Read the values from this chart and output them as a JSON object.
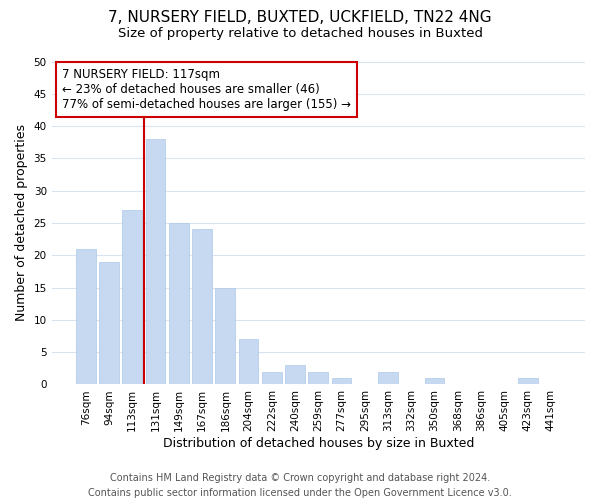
{
  "title": "7, NURSERY FIELD, BUXTED, UCKFIELD, TN22 4NG",
  "subtitle": "Size of property relative to detached houses in Buxted",
  "xlabel": "Distribution of detached houses by size in Buxted",
  "ylabel": "Number of detached properties",
  "categories": [
    "76sqm",
    "94sqm",
    "113sqm",
    "131sqm",
    "149sqm",
    "167sqm",
    "186sqm",
    "204sqm",
    "222sqm",
    "240sqm",
    "259sqm",
    "277sqm",
    "295sqm",
    "313sqm",
    "332sqm",
    "350sqm",
    "368sqm",
    "386sqm",
    "405sqm",
    "423sqm",
    "441sqm"
  ],
  "values": [
    21,
    19,
    27,
    38,
    25,
    24,
    15,
    7,
    2,
    3,
    2,
    1,
    0,
    2,
    0,
    1,
    0,
    0,
    0,
    1,
    0
  ],
  "bar_color": "#c6d9f1",
  "bar_edge_color": "#adc8e8",
  "marker_label": "7 NURSERY FIELD: 117sqm",
  "annotation1": "← 23% of detached houses are smaller (46)",
  "annotation2": "77% of semi-detached houses are larger (155) →",
  "ylim": [
    0,
    50
  ],
  "yticks": [
    0,
    5,
    10,
    15,
    20,
    25,
    30,
    35,
    40,
    45,
    50
  ],
  "vline_color": "#cc0000",
  "vline_x_index": 2.5,
  "box_facecolor": "white",
  "box_edgecolor": "#cc0000",
  "footer1": "Contains HM Land Registry data © Crown copyright and database right 2024.",
  "footer2": "Contains public sector information licensed under the Open Government Licence v3.0.",
  "title_fontsize": 11,
  "subtitle_fontsize": 9.5,
  "xlabel_fontsize": 9,
  "ylabel_fontsize": 9,
  "tick_fontsize": 7.5,
  "footer_fontsize": 7,
  "annotation_fontsize": 8.5,
  "background_color": "#ffffff",
  "grid_color": "#d8e4f0"
}
